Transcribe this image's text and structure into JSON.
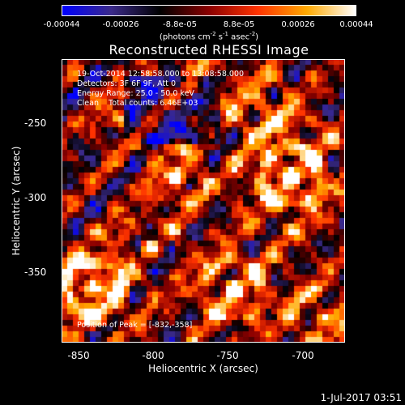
{
  "colorbar": {
    "ticks": [
      "-0.00044",
      "-0.00026",
      "-8.8e-05",
      "8.8e-05",
      "0.00026",
      "0.00044"
    ],
    "unit_prefix": "(photons cm",
    "unit_exp1": "-2",
    "unit_mid1": " s",
    "unit_exp2": "-1",
    "unit_mid2": " asec",
    "unit_exp3": "-2",
    "unit_suffix": ")",
    "colormap": [
      "#0000ff",
      "#3b2a8a",
      "#000000",
      "#8b0000",
      "#ff3300",
      "#ffaa00",
      "#ffffff"
    ]
  },
  "chart_data": {
    "type": "heatmap",
    "title": "Reconstructed RHESSI Image",
    "xlabel": "Heliocentric X (arcsec)",
    "ylabel": "Heliocentric Y (arcsec)",
    "xlim": [
      -862,
      -672
    ],
    "ylim": [
      -397,
      -207
    ],
    "x_ticks": [
      "-850",
      "-800",
      "-750",
      "-700"
    ],
    "y_ticks": [
      "-250",
      "-300",
      "-350"
    ],
    "x_tick_values": [
      -850,
      -800,
      -750,
      -700
    ],
    "y_tick_values": [
      -250,
      -300,
      -350
    ],
    "value_range": [
      -0.00044,
      0.00044
    ],
    "peak_position": [
      -832,
      -358
    ]
  },
  "info": {
    "line1": "19-Oct-2014 12:58:58.000 to 13:08:58.000",
    "line2": "Detectors: 3F 6F 9F, Att 0",
    "line3": "Energy Range: 25.0 - 50.0 keV",
    "line4": "Clean    Total counts: 6.46E+03",
    "peak": "Position of Peak = [-832,-358]"
  },
  "timestamp": "1-Jul-2017 03:51"
}
